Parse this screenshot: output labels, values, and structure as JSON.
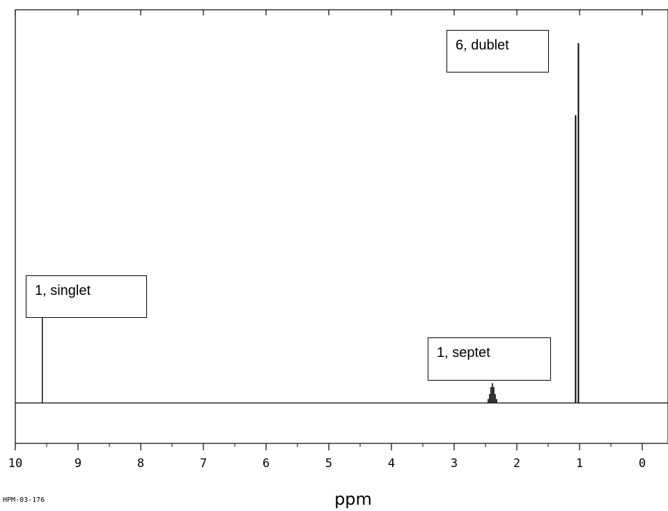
{
  "chart_data": {
    "type": "line",
    "title": "",
    "xlabel": "ppm",
    "ylabel": "",
    "xlim": [
      10,
      -0.4
    ],
    "x_reversed": true,
    "grid": false,
    "ticks": {
      "major": [
        10,
        9,
        8,
        7,
        6,
        5,
        4,
        3,
        2,
        1,
        0
      ],
      "labels": [
        "10",
        "9",
        "8",
        "7",
        "6",
        "5",
        "4",
        "3",
        "2",
        "1",
        "0"
      ],
      "minor": [
        9.5,
        8.5,
        7.5,
        6.5,
        5.5,
        4.5,
        3.5,
        2.5,
        1.5,
        0.5
      ]
    },
    "peaks": [
      {
        "ppm": 9.57,
        "relative_height": 0.26,
        "multiplicity": "singlet"
      },
      {
        "ppm": 2.39,
        "relative_height": 0.055,
        "multiplicity": "septet"
      },
      {
        "ppm": 1.04,
        "relative_height": 1.0,
        "multiplicity": "doublet"
      }
    ],
    "annotations": [
      {
        "text": "1, singlet",
        "peak": 9.57
      },
      {
        "text": "1, septet",
        "peak": 2.39
      },
      {
        "text": "6, dublet",
        "peak": 1.04
      }
    ],
    "sample_id": "HPM-03-176"
  }
}
